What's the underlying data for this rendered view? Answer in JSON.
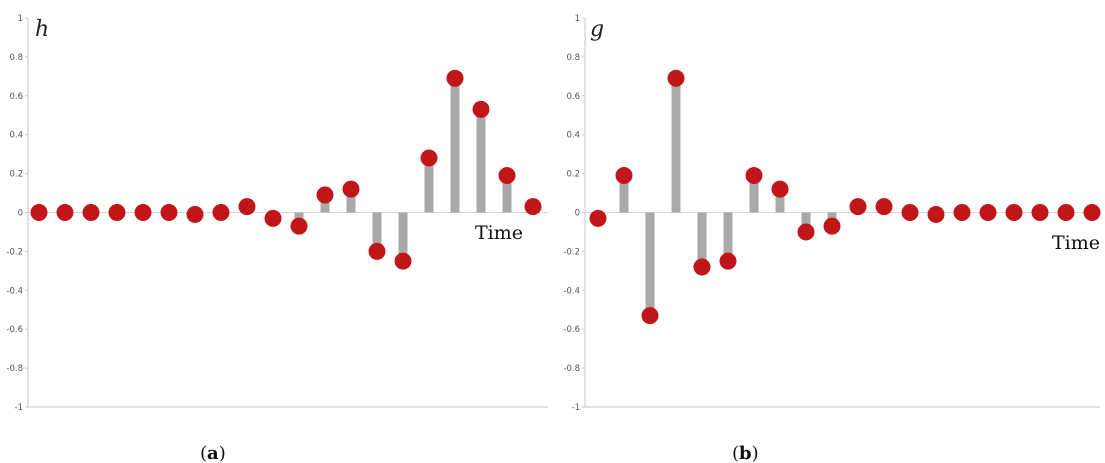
{
  "chart_data": [
    {
      "type": "stem",
      "title": "h",
      "xlabel": "Time",
      "ylabel": "",
      "ylim": [
        -1,
        1
      ],
      "yticks": [
        "1",
        "0.8",
        "0.6",
        "0.4",
        "0.2",
        "0",
        "-0.2",
        "-0.4",
        "-0.6",
        "-0.8",
        "-1"
      ],
      "caption_letter": "a",
      "values": [
        0,
        0,
        0,
        0,
        0,
        0,
        -0.01,
        0,
        0.03,
        -0.03,
        -0.07,
        0.09,
        0.12,
        -0.2,
        -0.25,
        0.28,
        0.69,
        0.53,
        0.19,
        0.03
      ]
    },
    {
      "type": "stem",
      "title": "g",
      "xlabel": "Time",
      "ylabel": "",
      "ylim": [
        -1,
        1
      ],
      "yticks": [
        "1",
        "0.8",
        "0.6",
        "0.4",
        "0.2",
        "0",
        "-0.2",
        "-0.4",
        "-0.6",
        "-0.8",
        "-1"
      ],
      "caption_letter": "b",
      "values": [
        -0.03,
        0.19,
        -0.53,
        0.69,
        -0.28,
        -0.25,
        0.19,
        0.12,
        -0.1,
        -0.07,
        0.03,
        0.03,
        0,
        -0.01,
        0,
        0,
        0,
        0,
        0,
        0
      ]
    }
  ],
  "colors": {
    "dot": "#c0161a",
    "stem": "#a9a9a9",
    "axis": "#c8c8c8"
  }
}
